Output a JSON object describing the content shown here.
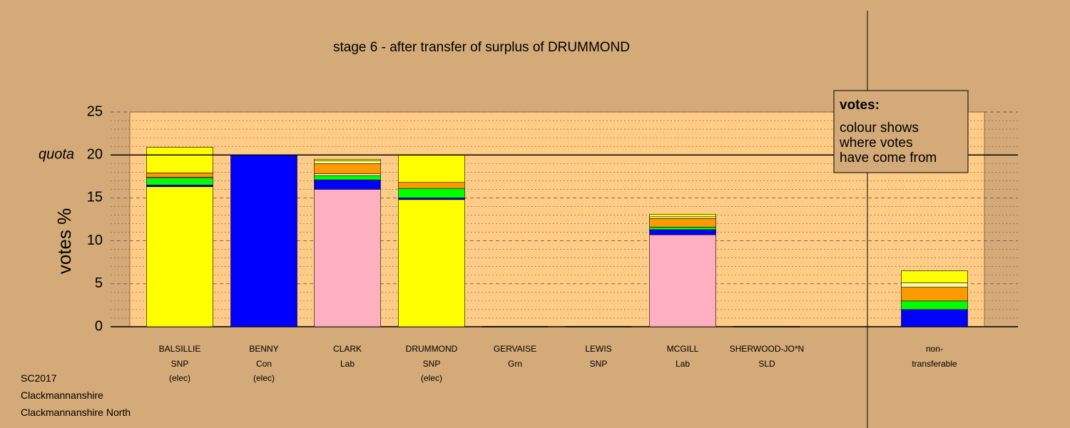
{
  "chart_data": {
    "type": "bar",
    "stacked": true,
    "title": "stage 6 - after transfer of surplus of DRUMMOND",
    "ylabel": "votes %",
    "ylim": [
      0,
      25
    ],
    "yticks": [
      0,
      5,
      10,
      15,
      20,
      25
    ],
    "quota": 20,
    "quota_label": "quota",
    "legend": {
      "title": "votes:",
      "lines": [
        "colour shows",
        "where votes",
        "have come from"
      ],
      "placement": "top-right"
    },
    "colors": {
      "SNP": "#ffff00",
      "Con": "#0000ff",
      "Lab": "#ffb0c0",
      "Grn": "#00ff00",
      "SLD": "#ff9900",
      "other": "#ffffaa",
      "plot_bg": "#ffcc88",
      "page_bg": "#d4aa78"
    },
    "candidates": [
      {
        "name": "BALSILLIE",
        "party": "SNP",
        "status": "(elec)",
        "segments": [
          {
            "from": "SNP",
            "value": 16.3
          },
          {
            "from": "Con",
            "value": 0.2
          },
          {
            "from": "Grn",
            "value": 0.8
          },
          {
            "from": "other",
            "value": 0.1
          },
          {
            "from": "SLD",
            "value": 0.5
          },
          {
            "from": "SNP",
            "value": 3.0
          }
        ]
      },
      {
        "name": "BENNY",
        "party": "Con",
        "status": "(elec)",
        "segments": [
          {
            "from": "Con",
            "value": 20.0
          }
        ]
      },
      {
        "name": "CLARK",
        "party": "Lab",
        "status": "",
        "segments": [
          {
            "from": "Lab",
            "value": 16.0
          },
          {
            "from": "Con",
            "value": 1.1
          },
          {
            "from": "Grn",
            "value": 0.5
          },
          {
            "from": "other",
            "value": 0.2
          },
          {
            "from": "SLD",
            "value": 1.2
          },
          {
            "from": "other",
            "value": 0.3
          },
          {
            "from": "SNP",
            "value": 0.2
          }
        ]
      },
      {
        "name": "DRUMMOND",
        "party": "SNP",
        "status": "(elec)",
        "segments": [
          {
            "from": "SNP",
            "value": 14.8
          },
          {
            "from": "Con",
            "value": 0.2
          },
          {
            "from": "Grn",
            "value": 1.1
          },
          {
            "from": "SLD",
            "value": 0.7
          },
          {
            "from": "SNP",
            "value": 3.2
          }
        ]
      },
      {
        "name": "GERVAISE",
        "party": "Grn",
        "status": "",
        "segments": []
      },
      {
        "name": "LEWIS",
        "party": "SNP",
        "status": "",
        "segments": []
      },
      {
        "name": "MCGILL",
        "party": "Lab",
        "status": "",
        "segments": [
          {
            "from": "Lab",
            "value": 10.7
          },
          {
            "from": "Con",
            "value": 0.6
          },
          {
            "from": "Grn",
            "value": 0.3
          },
          {
            "from": "SLD",
            "value": 1.0
          },
          {
            "from": "other",
            "value": 0.2
          },
          {
            "from": "SNP",
            "value": 0.3
          }
        ]
      },
      {
        "name": "SHERWOOD-JO*N",
        "party": "SLD",
        "status": "",
        "segments": []
      }
    ],
    "nontransferable": {
      "label_line1": "non-",
      "label_line2": "transferable",
      "segments": [
        {
          "from": "Con",
          "value": 2.0
        },
        {
          "from": "Grn",
          "value": 1.0
        },
        {
          "from": "SLD",
          "value": 1.6
        },
        {
          "from": "other",
          "value": 0.5
        },
        {
          "from": "SNP",
          "value": 1.4
        }
      ]
    }
  },
  "footer": {
    "line1": "SC2017",
    "line2": "Clackmannanshire",
    "line3": "Clackmannanshire North"
  }
}
